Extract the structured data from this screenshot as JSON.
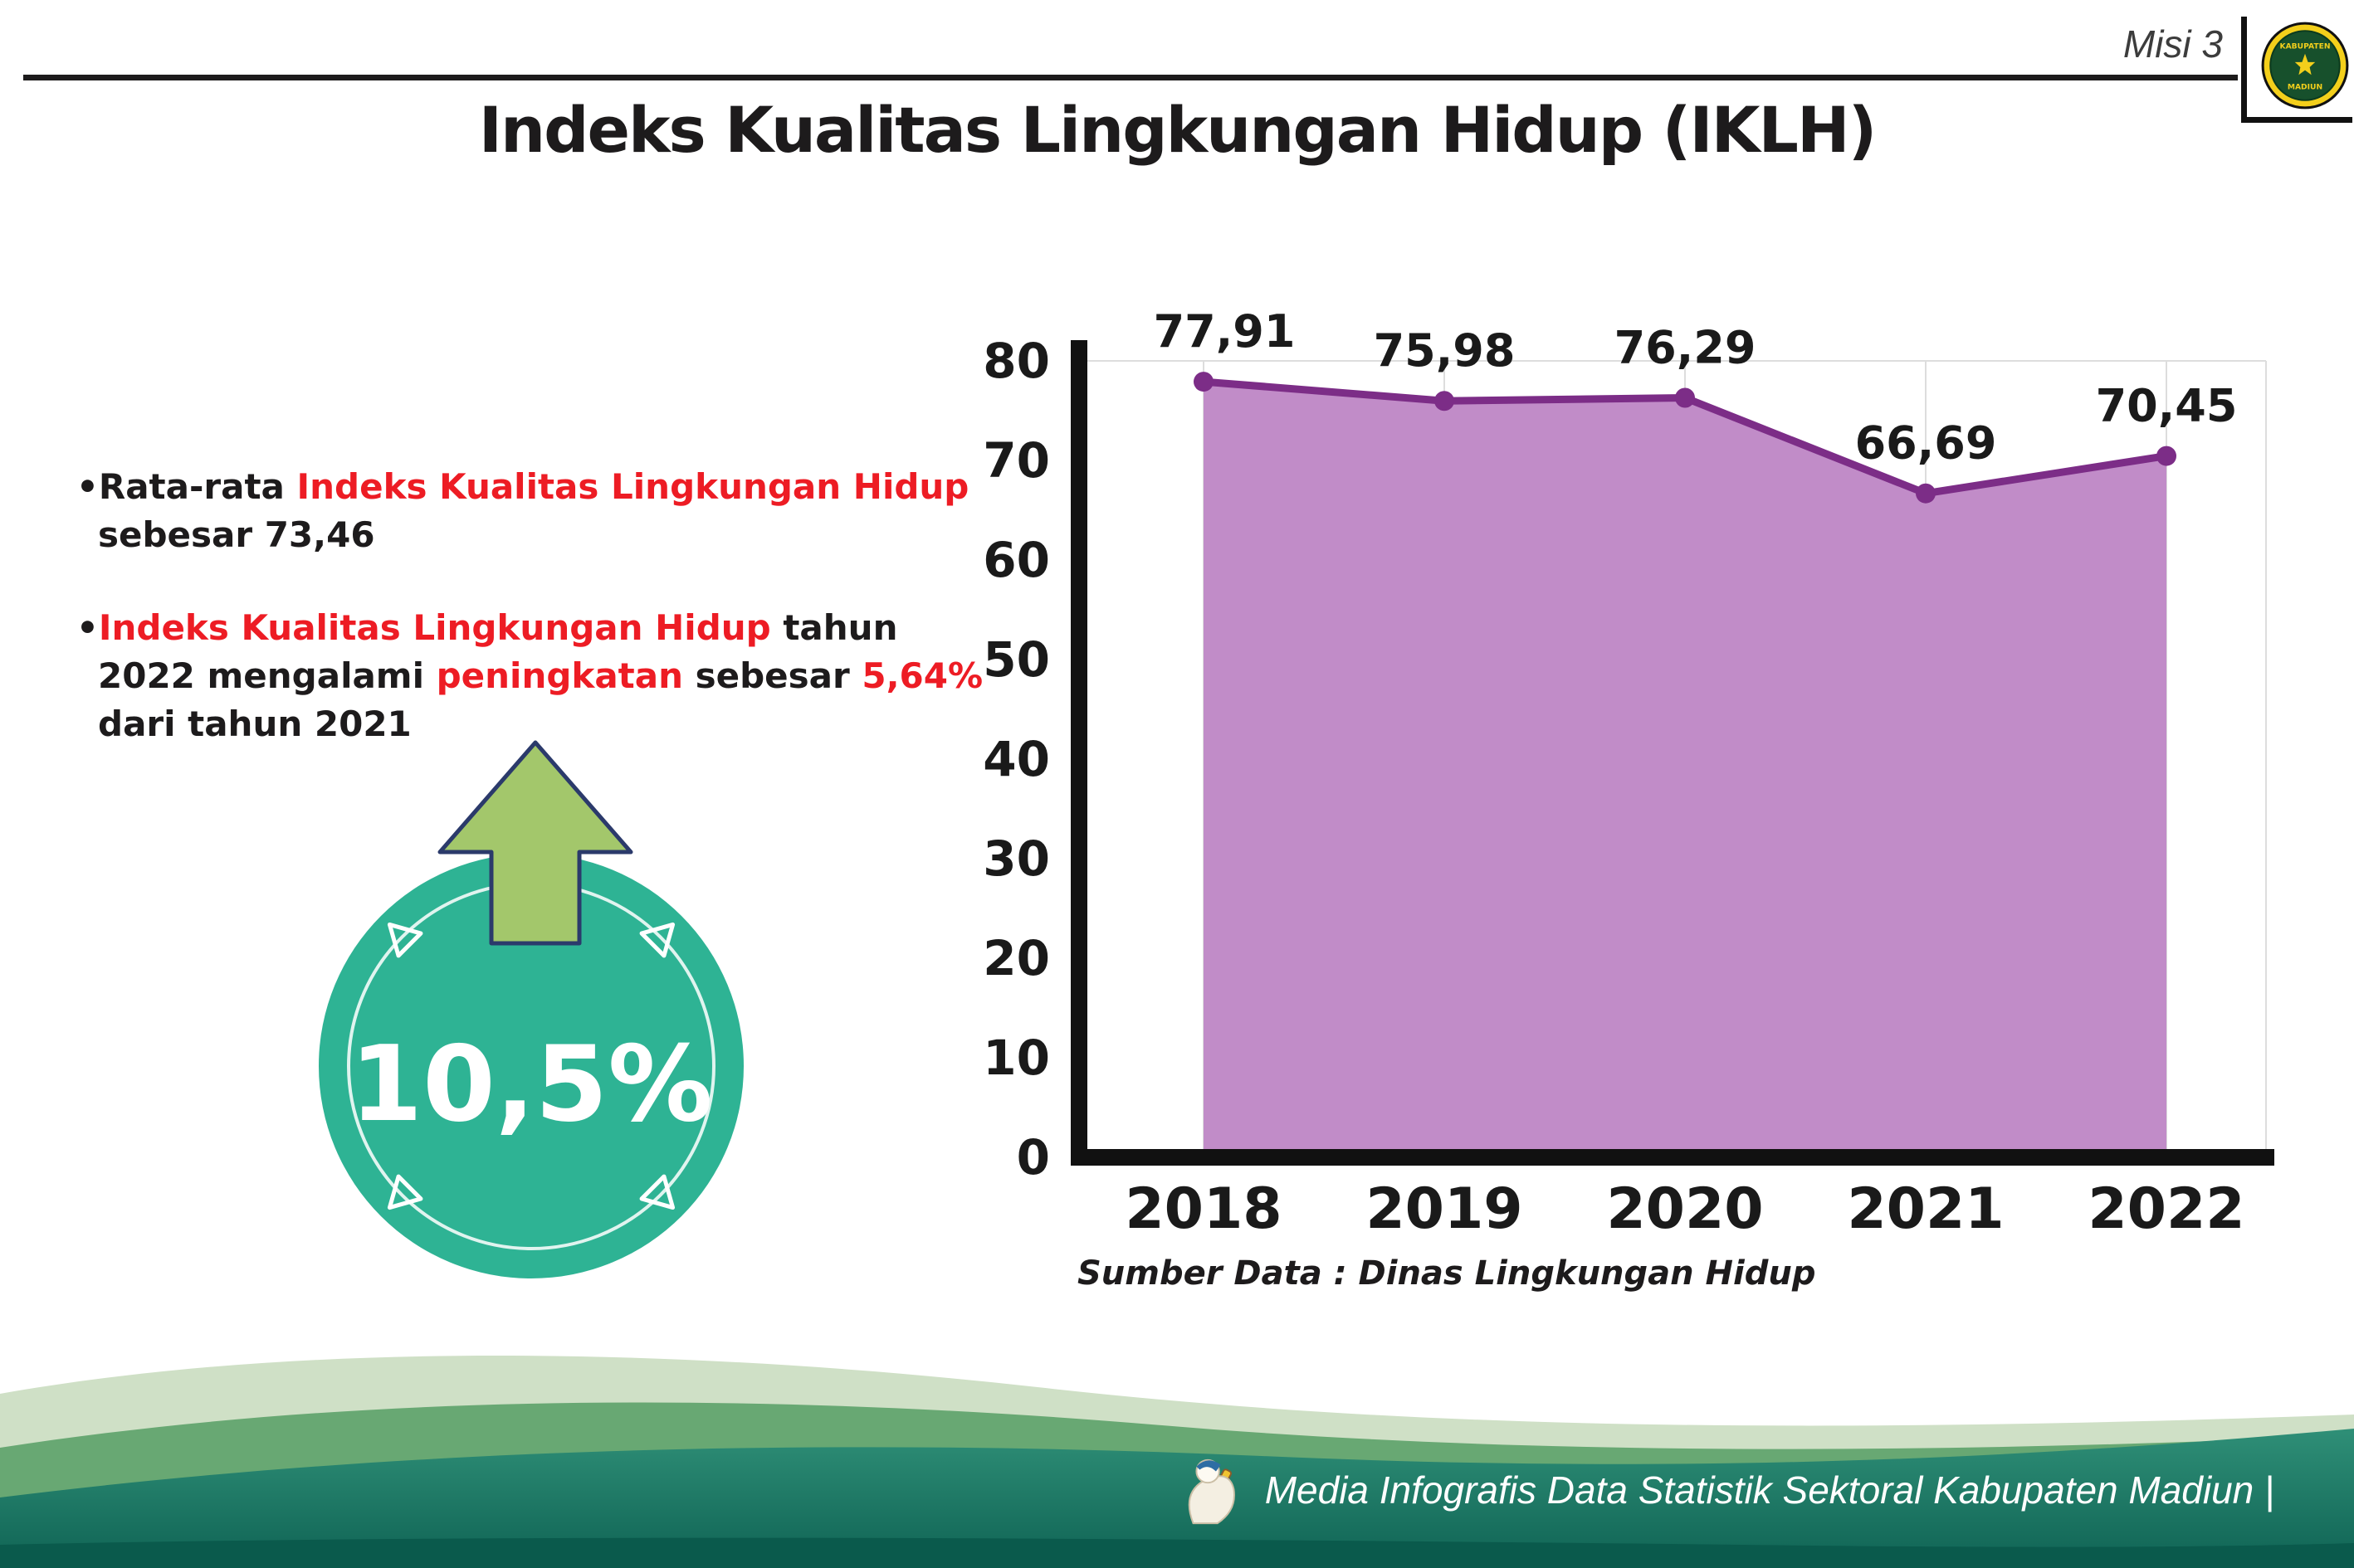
{
  "header": {
    "misi_label": "Misi 3",
    "title": "Indeks Kualitas Lingkungan Hidup (IKLH)",
    "logo": {
      "name": "kabupaten-madiun-crest",
      "text_top": "KABUPATEN",
      "text_bottom": "MADIUN"
    }
  },
  "bullets": [
    {
      "marker": "•",
      "segments": [
        {
          "text": "Rata-rata ",
          "color": "black"
        },
        {
          "text": "Indeks Kualitas Lingkungan Hidup",
          "color": "red"
        },
        {
          "text": " sebesar 73,46",
          "color": "black"
        }
      ]
    },
    {
      "marker": "•",
      "segments": [
        {
          "text": "Indeks Kualitas Lingkungan Hidup",
          "color": "red"
        },
        {
          "text": " tahun 2022 mengalami ",
          "color": "black"
        },
        {
          "text": "peningkatan",
          "color": "red"
        },
        {
          "text": " sebesar ",
          "color": "black"
        },
        {
          "text": "5,64%",
          "color": "red"
        },
        {
          "text": " dari tahun 2021",
          "color": "black"
        }
      ]
    }
  ],
  "badge": {
    "value": "10,5%",
    "direction": "up"
  },
  "chart_data": {
    "type": "area",
    "categories": [
      "2018",
      "2019",
      "2020",
      "2021",
      "2022"
    ],
    "values": [
      77.91,
      75.98,
      76.29,
      66.69,
      70.45
    ],
    "labels": [
      "77,91",
      "75,98",
      "76,29",
      "66,69",
      "70,45"
    ],
    "ylim": [
      0,
      80
    ],
    "ytick_step": 10,
    "grid": true,
    "legend": "none",
    "source": "Sumber Data : Dinas Lingkungan Hidup",
    "fill_color": "#c18cc8",
    "line_color": "#7c2d87",
    "label_color": "#1a1a1a"
  },
  "footer": {
    "caption": "Media Infografis Data Statistik Sektoral Kabupaten Madiun |"
  },
  "colors": {
    "accent_red": "#ed1c24",
    "text_black": "#1d1b1c",
    "badge_teal": "#2eb394",
    "arrow_green": "#a3c76b",
    "arrow_outline": "#2b3a6b",
    "footer_teal": "#17685a"
  }
}
